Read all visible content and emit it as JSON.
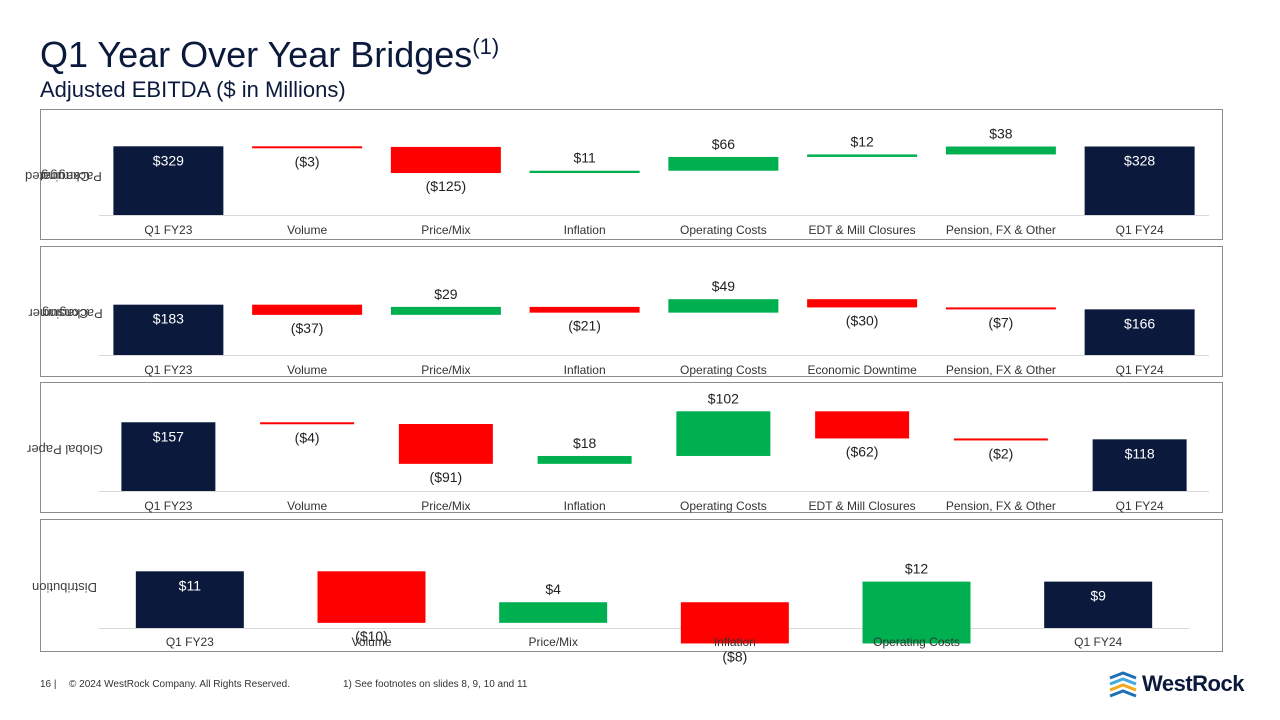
{
  "header": {
    "title": "Q1 Year Over Year Bridges",
    "title_sup": "(1)",
    "subtitle": "Adjusted EBITDA ($ in Millions)"
  },
  "footer": {
    "page_number": "16 |",
    "copyright": "© 2024 WestRock Company. All Rights Reserved.",
    "footnote": "1) See footnotes on slides 8, 9, 10 and 11"
  },
  "logo": {
    "text": "WestRock"
  },
  "colors": {
    "total": "#0b1a3c",
    "increase": "#00b050",
    "decrease": "#ff0000",
    "axis": "#d9d9d9"
  },
  "chart_data": [
    {
      "type": "bar",
      "subtype": "waterfall",
      "title": "Corrugated Packaging",
      "categories": [
        "Q1 FY23",
        "Volume",
        "Price/Mix",
        "Inflation",
        "Operating Costs",
        "EDT & Mill Closures",
        "Pension, FX & Other",
        "Q1 FY24"
      ],
      "values": [
        329,
        -3,
        -125,
        11,
        66,
        12,
        38,
        328
      ],
      "labels": [
        "$329",
        "($3)",
        "($125)",
        "$11",
        "$66",
        "$12",
        "$38",
        "$328"
      ],
      "kinds": [
        "total",
        "delta",
        "delta",
        "delta",
        "delta",
        "delta",
        "delta",
        "total"
      ]
    },
    {
      "type": "bar",
      "subtype": "waterfall",
      "title": "Consumer Packaging",
      "categories": [
        "Q1 FY23",
        "Volume",
        "Price/Mix",
        "Inflation",
        "Operating Costs",
        "Economic Downtime",
        "Pension, FX & Other",
        "Q1 FY24"
      ],
      "values": [
        183,
        -37,
        29,
        -21,
        49,
        -30,
        -7,
        166
      ],
      "labels": [
        "$183",
        "($37)",
        "$29",
        "($21)",
        "$49",
        "($30)",
        "($7)",
        "$166"
      ],
      "kinds": [
        "total",
        "delta",
        "delta",
        "delta",
        "delta",
        "delta",
        "delta",
        "total"
      ]
    },
    {
      "type": "bar",
      "subtype": "waterfall",
      "title": "Global Paper",
      "categories": [
        "Q1 FY23",
        "Volume",
        "Price/Mix",
        "Inflation",
        "Operating Costs",
        "EDT & Mill Closures",
        "Pension, FX & Other",
        "Q1 FY24"
      ],
      "values": [
        157,
        -4,
        -91,
        18,
        102,
        -62,
        -2,
        118
      ],
      "labels": [
        "$157",
        "($4)",
        "($91)",
        "$18",
        "$102",
        "($62)",
        "($2)",
        "$118"
      ],
      "kinds": [
        "total",
        "delta",
        "delta",
        "delta",
        "delta",
        "delta",
        "delta",
        "total"
      ]
    },
    {
      "type": "bar",
      "subtype": "waterfall",
      "title": "Distribution",
      "categories": [
        "Q1 FY23",
        "Volume",
        "Price/Mix",
        "Inflation",
        "Operating Costs",
        "Q1 FY24"
      ],
      "values": [
        11,
        -10,
        4,
        -8,
        12,
        9
      ],
      "labels": [
        "$11",
        "($10)",
        "$4",
        "($8)",
        "$12",
        "$9"
      ],
      "kinds": [
        "total",
        "delta",
        "delta",
        "delta",
        "delta",
        "total"
      ]
    }
  ],
  "panels": [
    {
      "label_lines": [
        "Corrugated",
        "Packaging"
      ]
    },
    {
      "label_lines": [
        "Consumer",
        "Packaging"
      ]
    },
    {
      "label_lines": [
        "Global Paper"
      ]
    },
    {
      "label_lines": [
        "Distribution"
      ]
    }
  ]
}
